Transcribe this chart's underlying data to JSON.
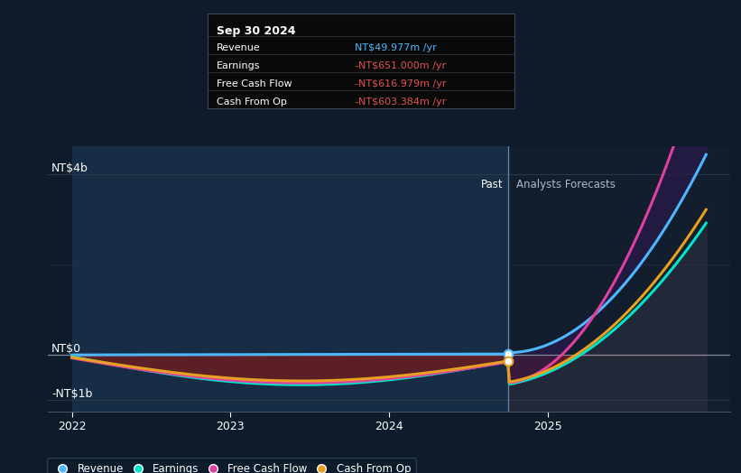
{
  "bg_color": "#0d1b2a",
  "tooltip_date": "Sep 30 2024",
  "tooltip_data": {
    "Revenue": {
      "value": "NT$49.977m",
      "color": "#4db8ff"
    },
    "Earnings": {
      "value": "-NT$651.000m",
      "color": "#e05050"
    },
    "Free Cash Flow": {
      "value": "-NT$616.979m",
      "color": "#e05050"
    },
    "Cash From Op": {
      "value": "-NT$603.384m",
      "color": "#e05050"
    }
  },
  "ylabel_top": "NT$4b",
  "ylabel_zero": "NT$0",
  "ylabel_bottom": "-NT$1b",
  "past_label": "Past",
  "forecast_label": "Analysts Forecasts",
  "x_ticks": [
    2022,
    2023,
    2024,
    2025
  ],
  "divider_x": 2024.75,
  "xlim_left": 2021.85,
  "xlim_right": 2026.15,
  "ylim_bottom": -1250000000.0,
  "ylim_top": 4600000000.0,
  "colors": {
    "revenue": "#4db8ff",
    "earnings": "#00e5cc",
    "free_cash_flow": "#e040a0",
    "cash_from_op": "#e8a020"
  }
}
